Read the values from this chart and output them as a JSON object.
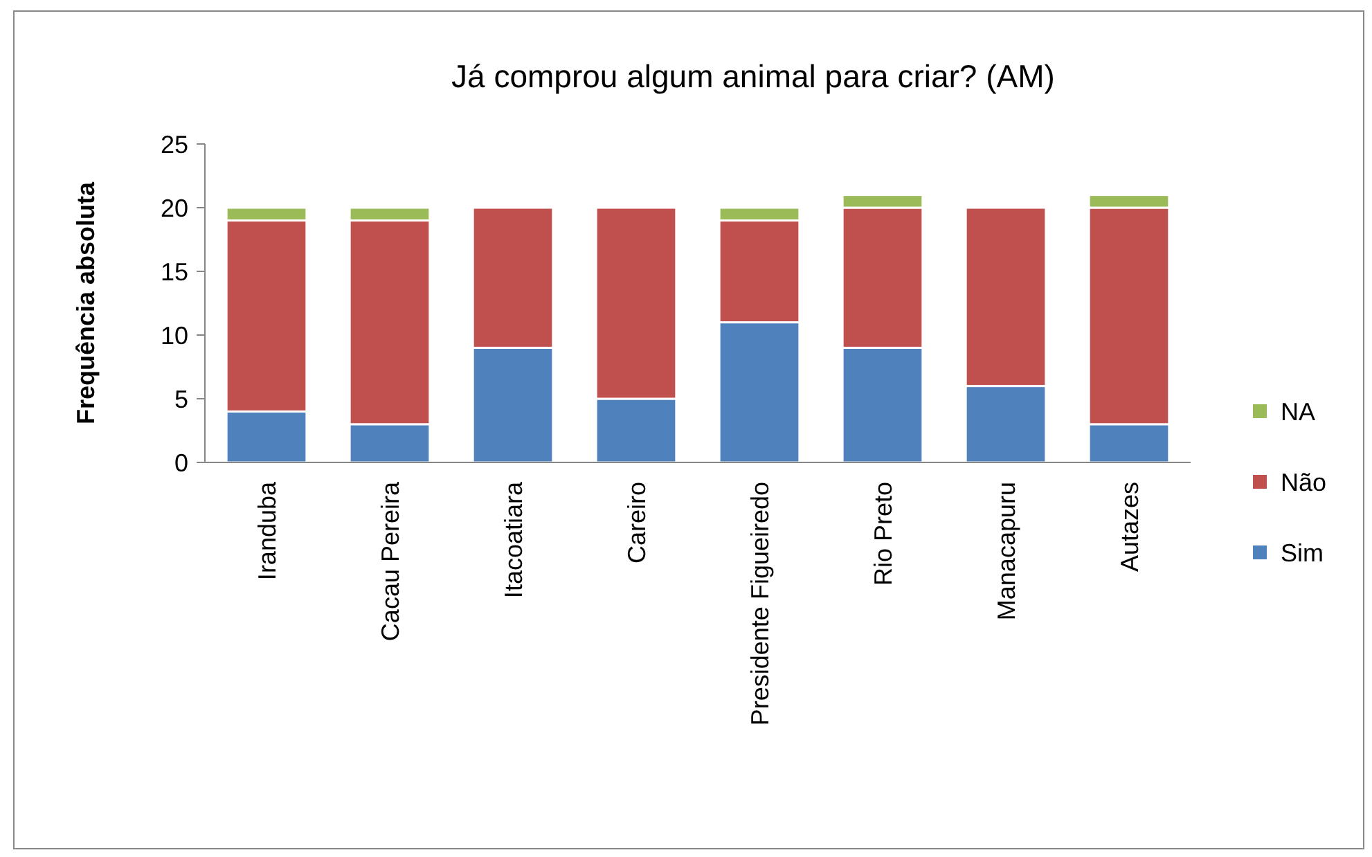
{
  "chart_data": {
    "type": "bar",
    "title": "Já comprou algum animal para criar? (AM)",
    "ylabel": "Frequência absoluta",
    "categories": [
      "Iranduba",
      "Cacau Pereira",
      "Itacoatiara",
      "Careiro",
      "Presidente Figueiredo",
      "Rio Preto",
      "Manacapuru",
      "Autazes"
    ],
    "series": [
      {
        "name": "Sim",
        "color": "#4f81bd",
        "values": [
          4,
          3,
          9,
          5,
          11,
          9,
          6,
          3
        ]
      },
      {
        "name": "Não",
        "color": "#c0504d",
        "values": [
          15,
          16,
          11,
          15,
          8,
          11,
          14,
          17
        ]
      },
      {
        "name": "NA",
        "color": "#9bbb59",
        "values": [
          1,
          1,
          0,
          0,
          1,
          1,
          0,
          1
        ]
      }
    ],
    "stacked": true,
    "ylim": [
      0,
      25
    ],
    "yticks": [
      0,
      5,
      10,
      15,
      20,
      25
    ],
    "grid": false,
    "legend": "right"
  }
}
